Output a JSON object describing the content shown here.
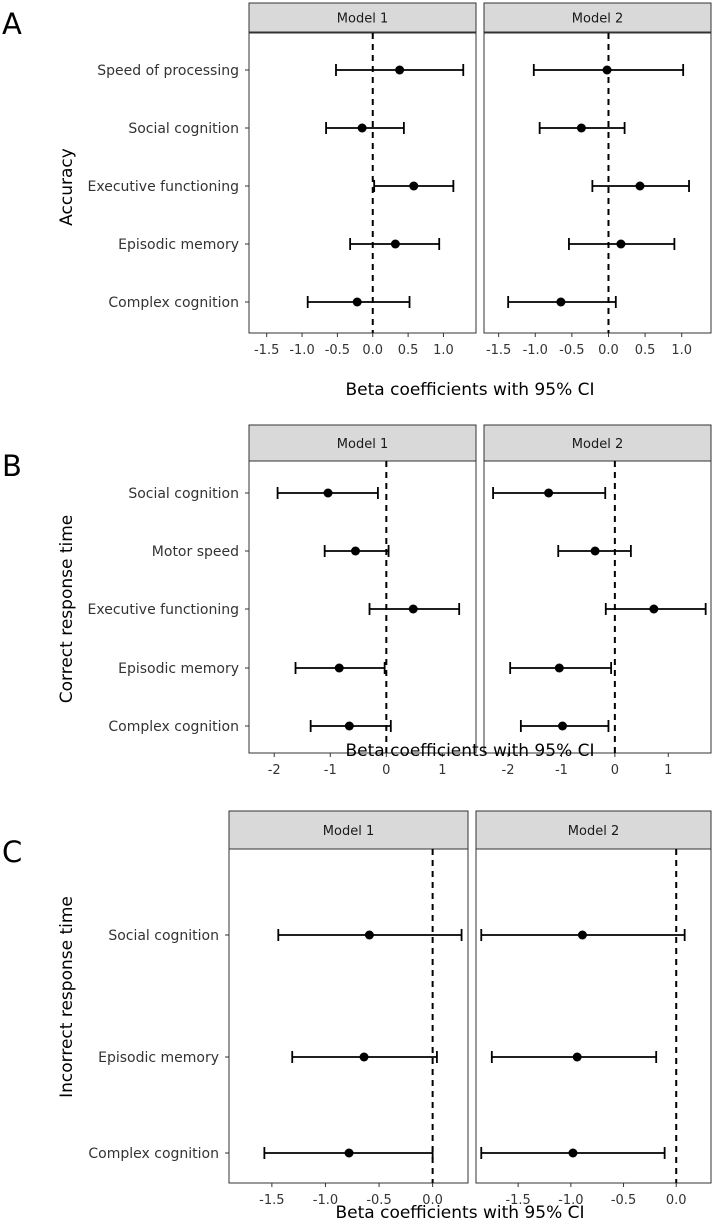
{
  "chart_data": [
    {
      "type": "forest",
      "panel_label": "A",
      "ylabel": "Accuracy",
      "xlabel": "Beta coefficients with 95% CI",
      "categories": [
        "Speed of processing",
        "Social cognition",
        "Executive functioning",
        "Episodic memory",
        "Complex cognition"
      ],
      "xticks": [
        -1.5,
        -1.0,
        -0.5,
        0.0,
        0.5,
        1.0
      ],
      "tick_labels": [
        "-1.5",
        "-1.0",
        "-0.5",
        "0.0",
        "0.5",
        "1.0"
      ],
      "facets": [
        {
          "name": "Model 1",
          "xlim": [
            -1.75,
            1.46
          ],
          "estimates": [
            0.38,
            -0.15,
            0.58,
            0.32,
            -0.22
          ],
          "lower": [
            -0.52,
            -0.66,
            0.02,
            -0.32,
            -0.92
          ],
          "upper": [
            1.28,
            0.44,
            1.14,
            0.94,
            0.52
          ]
        },
        {
          "name": "Model 2",
          "xlim": [
            -1.7,
            1.4
          ],
          "estimates": [
            -0.02,
            -0.37,
            0.43,
            0.17,
            -0.65
          ],
          "lower": [
            -1.02,
            -0.94,
            -0.22,
            -0.54,
            -1.37
          ],
          "upper": [
            1.02,
            0.22,
            1.1,
            0.9,
            0.1
          ]
        }
      ]
    },
    {
      "type": "forest",
      "panel_label": "B",
      "ylabel": "Correct response time",
      "xlabel": "Beta coefficients with 95% CI",
      "categories": [
        "Social cognition",
        "Motor speed",
        "Executive functioning",
        "Episodic memory",
        "Complex cognition"
      ],
      "xticks": [
        -2,
        -1,
        0,
        1
      ],
      "tick_labels": [
        "-2",
        "-1",
        "0",
        "1"
      ],
      "facets": [
        {
          "name": "Model 1",
          "xlim": [
            -2.45,
            1.6
          ],
          "estimates": [
            -1.04,
            -0.55,
            0.48,
            -0.84,
            -0.66
          ],
          "lower": [
            -1.94,
            -1.1,
            -0.3,
            -1.62,
            -1.35
          ],
          "upper": [
            -0.15,
            0.04,
            1.3,
            -0.03,
            0.08
          ]
        },
        {
          "name": "Model 2",
          "xlim": [
            -2.45,
            1.8
          ],
          "estimates": [
            -1.24,
            -0.37,
            0.73,
            -1.04,
            -0.98
          ],
          "lower": [
            -2.28,
            -1.06,
            -0.17,
            -1.96,
            -1.76
          ],
          "upper": [
            -0.18,
            0.3,
            1.7,
            -0.07,
            -0.12
          ]
        }
      ]
    },
    {
      "type": "forest",
      "panel_label": "C",
      "ylabel": "Incorrect response time",
      "xlabel": "Beta coefficients with 95% CI",
      "categories": [
        "Social cognition",
        "Episodic memory",
        "Complex cognition"
      ],
      "xticks": [
        -1.5,
        -1.0,
        -0.5,
        0.0
      ],
      "tick_labels": [
        "-1.5",
        "-1.0",
        "-0.5",
        "0.0"
      ],
      "facets": [
        {
          "name": "Model 1",
          "xlim": [
            -1.9,
            0.33
          ],
          "estimates": [
            -0.59,
            -0.64,
            -0.78
          ],
          "lower": [
            -1.44,
            -1.31,
            -1.57
          ],
          "upper": [
            0.27,
            0.04,
            0.0
          ]
        },
        {
          "name": "Model 2",
          "xlim": [
            -1.9,
            0.33
          ],
          "estimates": [
            -0.89,
            -0.94,
            -0.98
          ],
          "lower": [
            -1.85,
            -1.75,
            -1.85
          ],
          "upper": [
            0.08,
            -0.19,
            -0.11
          ]
        }
      ]
    }
  ]
}
